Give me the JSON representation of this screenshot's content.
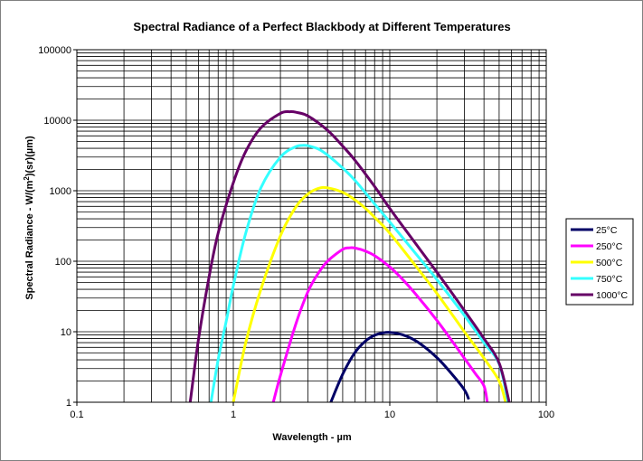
{
  "chart_data": {
    "type": "line",
    "title": "Spectral Radiance of a Perfect Blackbody at Different Temperatures",
    "xlabel": "Wavelength - µm",
    "ylabel_parts": [
      "Spectral Radiance - W/(m",
      "2",
      ")(sr)(µm)"
    ],
    "x_scale": "log",
    "y_scale": "log",
    "xlim": [
      0.1,
      100
    ],
    "ylim": [
      1,
      100000
    ],
    "x_tick_labels": [
      "0.1",
      "1",
      "10",
      "100"
    ],
    "y_tick_labels": [
      "1",
      "10",
      "100",
      "1000",
      "10000",
      "100000"
    ],
    "grid": true,
    "legend_position": "right",
    "series": [
      {
        "name": "25°C",
        "color": "#000066",
        "temperature_c": 25,
        "x": [
          4.2,
          5,
          6,
          7,
          8,
          9,
          10,
          12,
          15,
          20,
          25,
          30,
          32
        ],
        "y": [
          1,
          2.5,
          5.1,
          7.4,
          8.9,
          9.6,
          9.8,
          9.1,
          7.2,
          4.3,
          2.5,
          1.5,
          1.1
        ]
      },
      {
        "name": "250°C",
        "color": "#ff00ff",
        "temperature_c": 250,
        "x": [
          1.8,
          2,
          2.5,
          3,
          3.5,
          4,
          5,
          5.5,
          6,
          7,
          8,
          10,
          12,
          15,
          20,
          25,
          30,
          35,
          40,
          42
        ],
        "y": [
          1,
          2.4,
          12.5,
          37,
          68,
          100,
          147,
          155,
          154,
          139,
          120,
          83,
          56,
          32,
          14.5,
          7.4,
          4.2,
          2.6,
          1.7,
          1
        ]
      },
      {
        "name": "500°C",
        "color": "#ffff00",
        "temperature_c": 500,
        "x": [
          1,
          1.2,
          1.5,
          2,
          2.5,
          3,
          3.5,
          4,
          5,
          6,
          7,
          8,
          10,
          15,
          20,
          30,
          40,
          50,
          55
        ],
        "y": [
          1,
          7,
          40,
          230,
          580,
          900,
          1080,
          1100,
          950,
          740,
          560,
          420,
          250,
          80,
          35,
          10,
          4.2,
          2,
          1
        ]
      },
      {
        "name": "750°C",
        "color": "#33ffff",
        "temperature_c": 750,
        "x": [
          0.72,
          0.8,
          0.9,
          1,
          1.2,
          1.5,
          2,
          2.5,
          2.8,
          3,
          3.5,
          4,
          5,
          6,
          8,
          10,
          15,
          20,
          30,
          40,
          50,
          57
        ],
        "y": [
          1,
          4,
          14,
          45,
          250,
          1100,
          3000,
          4200,
          4400,
          4350,
          3900,
          3200,
          2100,
          1400,
          650,
          360,
          120,
          55,
          17,
          7,
          3.5,
          1
        ]
      },
      {
        "name": "1000°C",
        "color": "#660066",
        "temperature_c": 1000,
        "x": [
          0.53,
          0.6,
          0.7,
          0.8,
          1,
          1.2,
          1.5,
          2,
          2.3,
          2.5,
          3,
          4,
          5,
          6,
          8,
          10,
          15,
          20,
          30,
          40,
          50,
          58
        ],
        "y": [
          1,
          8,
          60,
          250,
          1300,
          3600,
          7800,
          12500,
          13200,
          13000,
          11500,
          7200,
          4300,
          2700,
          1150,
          560,
          165,
          70,
          20,
          8,
          3.6,
          1
        ]
      }
    ]
  }
}
